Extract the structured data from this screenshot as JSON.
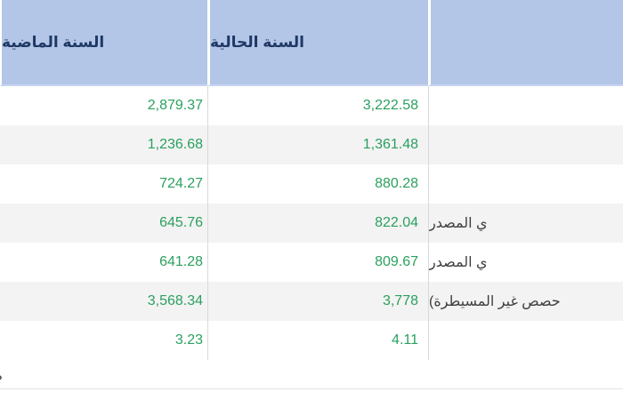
{
  "colors": {
    "header_bg": "#b3c6e7",
    "header_text": "#1f3864",
    "value_green": "#2ba05f",
    "row_alt_bg": "#f3f3f3",
    "grid_line": "#d9d9d9"
  },
  "table": {
    "columns": [
      {
        "key": "previous_year",
        "label": "السنة الماضية"
      },
      {
        "key": "current_year",
        "label": "السنة الحالية"
      },
      {
        "key": "description",
        "label": ""
      }
    ],
    "rows": [
      {
        "previous_year": "2,879.37",
        "current_year": "3,222.58",
        "description": ""
      },
      {
        "previous_year": "1,236.68",
        "current_year": "1,361.48",
        "description": ""
      },
      {
        "previous_year": "724.27",
        "current_year": "880.28",
        "description": ""
      },
      {
        "previous_year": "645.76",
        "current_year": "822.04",
        "description": "ي المصدر"
      },
      {
        "previous_year": "641.28",
        "current_year": "809.67",
        "description": "ي المصدر"
      },
      {
        "previous_year": "3,568.34",
        "current_year": "3,778",
        "description": "حصص غير المسيطرة)"
      },
      {
        "previous_year": "3.23",
        "current_year": "4.11",
        "description": ""
      }
    ]
  },
  "footer": {
    "clipped_fragment": "ه"
  }
}
